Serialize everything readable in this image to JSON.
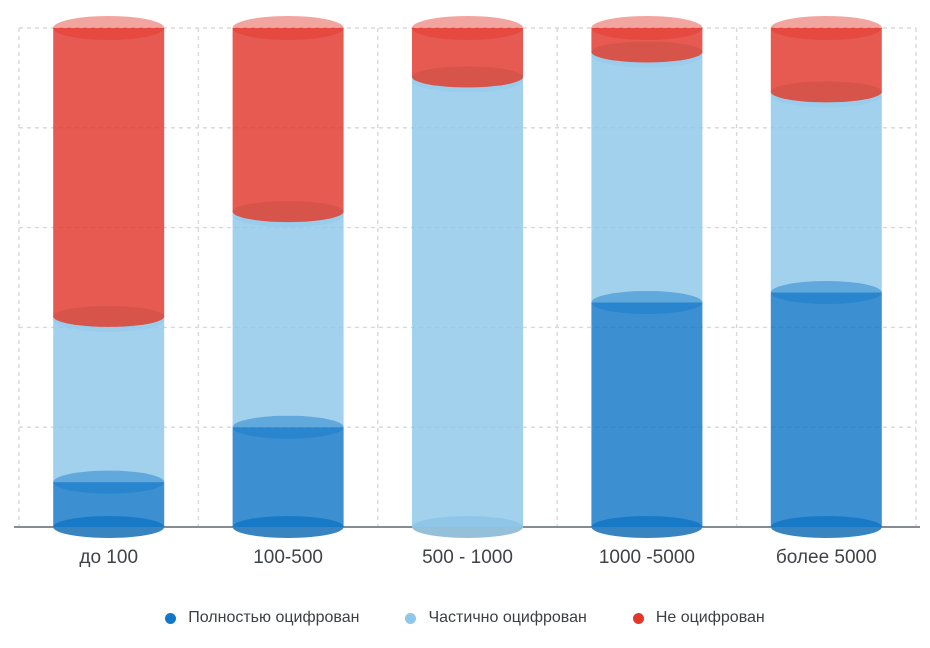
{
  "chart_data": {
    "type": "bar",
    "variant": "stacked-3d-cylinders",
    "title": "",
    "categories": [
      "до 100",
      "100-500",
      "500 - 1000",
      "1000 -5000",
      "более 5000"
    ],
    "series": [
      {
        "name": "Полностью оцифрован",
        "color": "#1178C8",
        "values": [
          9,
          20,
          0,
          45,
          47
        ]
      },
      {
        "name": "Частично оцифрован",
        "color": "#8EC7E9",
        "values": [
          33,
          43,
          90,
          50,
          40
        ]
      },
      {
        "name": "Не оцифрован",
        "color": "#E2362B",
        "values": [
          58,
          37,
          10,
          5,
          13
        ]
      }
    ],
    "stack_order_bottom_to_top": [
      "Полностью оцифрован",
      "Частично оцифрован",
      "Не оцифрован"
    ],
    "unit": "percent",
    "ylim": [
      0,
      100
    ],
    "grid": {
      "style": "dashed",
      "color": "#D8D8D8",
      "horizontal_rows": 5,
      "vertical_columns": 5
    },
    "axis": {
      "baseline_color": "#878B94",
      "y_tick_labels": [],
      "x_label_color": "#3F4349"
    },
    "legend_position": "bottom",
    "legend_text_color": "#3C4043"
  }
}
